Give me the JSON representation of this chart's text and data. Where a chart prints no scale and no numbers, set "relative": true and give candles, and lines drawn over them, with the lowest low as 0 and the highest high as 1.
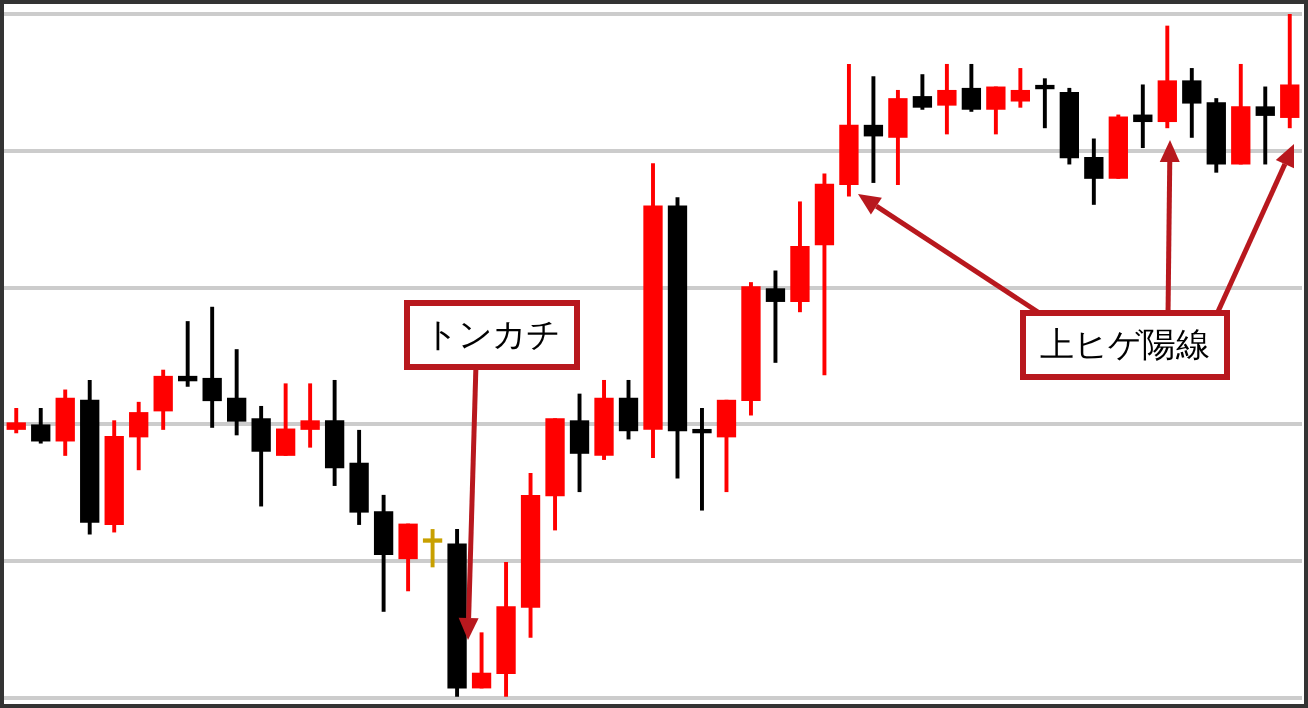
{
  "chart_data": {
    "type": "candlestick",
    "relative": true,
    "grid": "y",
    "legend": false,
    "categories": [
      null,
      null,
      null,
      null,
      null,
      null,
      null,
      null,
      null,
      null,
      null,
      null,
      null,
      null,
      null,
      null,
      null,
      null,
      null,
      null,
      null,
      null,
      null,
      null,
      null,
      null,
      null,
      null,
      null,
      null,
      null,
      null,
      null,
      null,
      null,
      null,
      null,
      null,
      null,
      null,
      null,
      null,
      null,
      null,
      null,
      null,
      null,
      null,
      null,
      null,
      null,
      null,
      null
    ],
    "ohlc": [
      [
        0.393,
        0.423,
        0.388,
        0.402
      ],
      [
        0.399,
        0.423,
        0.373,
        0.376
      ],
      [
        0.376,
        0.45,
        0.355,
        0.438
      ],
      [
        0.435,
        0.464,
        0.24,
        0.257
      ],
      [
        0.254,
        0.405,
        0.243,
        0.382
      ],
      [
        0.382,
        0.432,
        0.334,
        0.417
      ],
      [
        0.42,
        0.479,
        0.393,
        0.47
      ],
      [
        0.47,
        0.55,
        0.456,
        0.464
      ],
      [
        0.467,
        0.571,
        0.396,
        0.435
      ],
      [
        0.438,
        0.509,
        0.385,
        0.405
      ],
      [
        0.408,
        0.426,
        0.281,
        0.361
      ],
      [
        0.355,
        0.459,
        0.355,
        0.393
      ],
      [
        0.393,
        0.459,
        0.367,
        0.405
      ],
      [
        0.405,
        0.464,
        0.311,
        0.337
      ],
      [
        0.343,
        0.391,
        0.254,
        0.272
      ],
      [
        0.272,
        0.296,
        0.127,
        0.21
      ],
      [
        0.204,
        0.254,
        0.157,
        0.254
      ],
      [
        0.228,
        0.246,
        0.192,
        0.228
      ],
      [
        0.225,
        0.246,
        0.0,
        0.015
      ],
      [
        0.015,
        0.095,
        0.015,
        0.036
      ],
      [
        0.036,
        0.198,
        0.0,
        0.133
      ],
      [
        0.133,
        0.328,
        0.089,
        0.296
      ],
      [
        0.296,
        0.408,
        0.246,
        0.408
      ],
      [
        0.405,
        0.444,
        0.302,
        0.358
      ],
      [
        0.355,
        0.464,
        0.349,
        0.438
      ],
      [
        0.438,
        0.464,
        0.379,
        0.391
      ],
      [
        0.393,
        0.781,
        0.352,
        0.719
      ],
      [
        0.719,
        0.731,
        0.322,
        0.391
      ],
      [
        0.388,
        0.423,
        0.275,
        0.388
      ],
      [
        0.382,
        0.435,
        0.302,
        0.435
      ],
      [
        0.435,
        0.607,
        0.414,
        0.601
      ],
      [
        0.598,
        0.624,
        0.491,
        0.58
      ],
      [
        0.58,
        0.725,
        0.565,
        0.66
      ],
      [
        0.663,
        0.766,
        0.473,
        0.751
      ],
      [
        0.751,
        0.926,
        0.734,
        0.837
      ],
      [
        0.837,
        0.908,
        0.754,
        0.822
      ],
      [
        0.82,
        0.888,
        0.751,
        0.876
      ],
      [
        0.879,
        0.911,
        0.861,
        0.864
      ],
      [
        0.867,
        0.926,
        0.825,
        0.888
      ],
      [
        0.891,
        0.926,
        0.858,
        0.861
      ],
      [
        0.861,
        0.893,
        0.825,
        0.893
      ],
      [
        0.873,
        0.92,
        0.864,
        0.888
      ],
      [
        0.891,
        0.905,
        0.834,
        0.891
      ],
      [
        0.885,
        0.891,
        0.781,
        0.79
      ],
      [
        0.79,
        0.817,
        0.722,
        0.76
      ],
      [
        0.76,
        0.852,
        0.76,
        0.849
      ],
      [
        0.852,
        0.896,
        0.805,
        0.843
      ],
      [
        0.843,
        0.982,
        0.834,
        0.902
      ],
      [
        0.902,
        0.92,
        0.82,
        0.87
      ],
      [
        0.87,
        0.876,
        0.769,
        0.781
      ],
      [
        0.781,
        0.926,
        0.781,
        0.864
      ],
      [
        0.864,
        0.893,
        0.781,
        0.852
      ],
      [
        0.849,
        1.0,
        0.834,
        0.896
      ]
    ],
    "colors": [
      "#ff0000",
      "#000000",
      "#ff0000",
      "#000000",
      "#ff0000",
      "#ff0000",
      "#ff0000",
      "#000000",
      "#000000",
      "#000000",
      "#000000",
      "#ff0000",
      "#ff0000",
      "#000000",
      "#000000",
      "#000000",
      "#ff0000",
      "#c8a000",
      "#000000",
      "#ff0000",
      "#ff0000",
      "#ff0000",
      "#ff0000",
      "#000000",
      "#ff0000",
      "#000000",
      "#ff0000",
      "#000000",
      "#000000",
      "#ff0000",
      "#ff0000",
      "#000000",
      "#ff0000",
      "#ff0000",
      "#ff0000",
      "#000000",
      "#ff0000",
      "#000000",
      "#ff0000",
      "#000000",
      "#ff0000",
      "#ff0000",
      "#000000",
      "#000000",
      "#000000",
      "#ff0000",
      "#000000",
      "#ff0000",
      "#000000",
      "#000000",
      "#ff0000",
      "#000000",
      "#ff0000"
    ],
    "annotations": [
      "トンカチ",
      "上ヒゲ陽線"
    ]
  }
}
